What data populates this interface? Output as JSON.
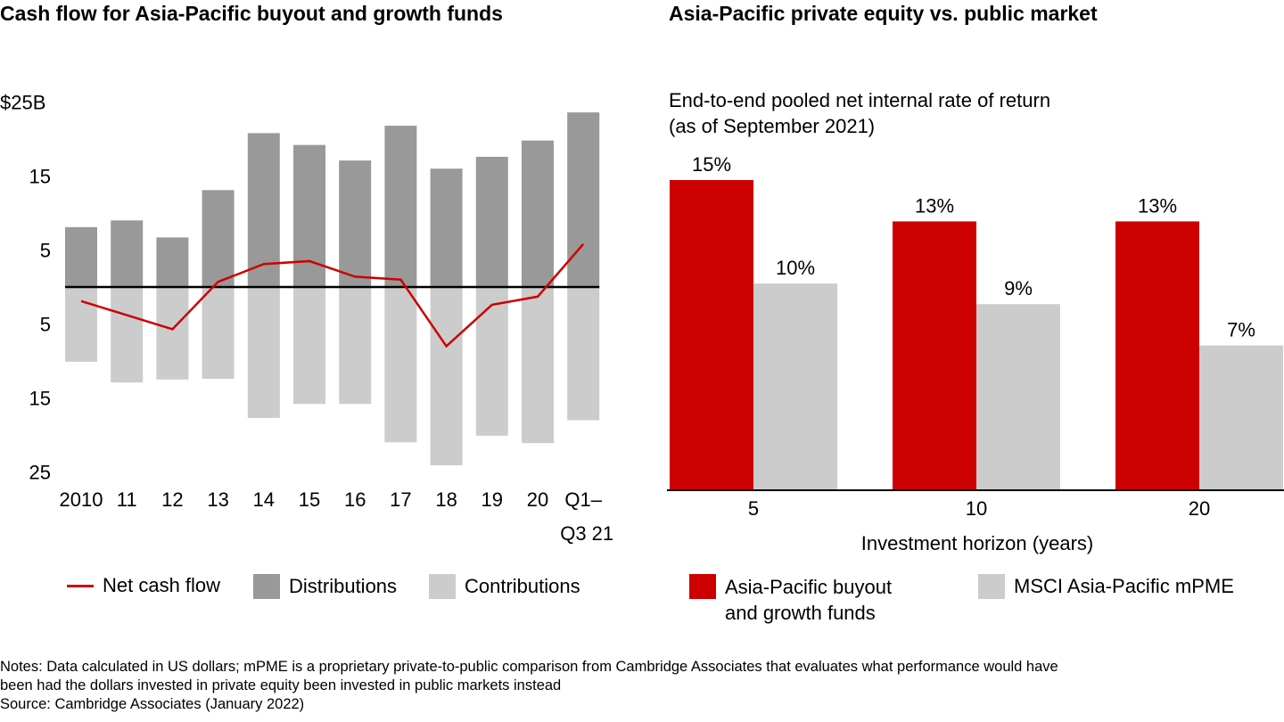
{
  "chart_data": [
    {
      "type": "bar",
      "title": "Cash flow for Asia-Pacific buyout and growth funds",
      "categories": [
        "2010",
        "11",
        "12",
        "13",
        "14",
        "15",
        "16",
        "17",
        "18",
        "19",
        "20",
        "Q1–Q3 21"
      ],
      "category_lines": [
        [
          "2010"
        ],
        [
          "11"
        ],
        [
          "12"
        ],
        [
          "13"
        ],
        [
          "14"
        ],
        [
          "15"
        ],
        [
          "16"
        ],
        [
          "17"
        ],
        [
          "18"
        ],
        [
          "19"
        ],
        [
          "20"
        ],
        [
          "Q1–",
          "Q3 21"
        ]
      ],
      "y_ticks": [
        {
          "value": 25,
          "label": "$25B"
        },
        {
          "value": 15,
          "label": "15"
        },
        {
          "value": 5,
          "label": "5"
        },
        {
          "value": -5,
          "label": "5"
        },
        {
          "value": -15,
          "label": "15"
        },
        {
          "value": -25,
          "label": "25"
        }
      ],
      "ylim": [
        -25,
        25
      ],
      "series": [
        {
          "name": "Distributions",
          "type": "bar",
          "color": "#999999",
          "values": [
            8.1,
            9.0,
            6.7,
            13.1,
            20.8,
            19.2,
            17.1,
            21.8,
            16.0,
            17.6,
            19.8,
            23.6
          ]
        },
        {
          "name": "Contributions",
          "type": "bar",
          "color": "#cccccc",
          "values": [
            -10.1,
            -12.9,
            -12.5,
            -12.4,
            -17.7,
            -15.8,
            -15.8,
            -21.0,
            -24.1,
            -20.1,
            -21.1,
            -18.0
          ]
        },
        {
          "name": "Net cash flow",
          "type": "line",
          "color": "#cc0000",
          "values": [
            -1.9,
            -3.8,
            -5.7,
            0.7,
            3.1,
            3.5,
            1.4,
            1.0,
            -8.0,
            -2.4,
            -1.3,
            5.8
          ]
        }
      ],
      "legend": [
        "Net cash flow",
        "Distributions",
        "Contributions"
      ],
      "legend_placement": "bottom"
    },
    {
      "type": "bar",
      "title": "Asia-Pacific private equity vs. public market",
      "subtitle": [
        "End-to-end pooled net internal rate of return",
        "(as of September 2021)"
      ],
      "categories": [
        "5",
        "10",
        "20"
      ],
      "xlabel": "Investment horizon (years)",
      "series": [
        {
          "name": "Asia-Pacific buyout and growth funds",
          "color": "#cc0000",
          "values": [
            15,
            13,
            13
          ],
          "labels": [
            "15%",
            "13%",
            "13%"
          ]
        },
        {
          "name": "MSCI Asia-Pacific mPME",
          "color": "#cccccc",
          "values": [
            10,
            9,
            7
          ],
          "labels": [
            "10%",
            "9%",
            "7%"
          ]
        }
      ],
      "legend": [
        [
          "Asia-Pacific buyout",
          "and growth funds"
        ],
        [
          "MSCI Asia-Pacific mPME"
        ]
      ],
      "legend_placement": "bottom"
    }
  ],
  "notes": [
    "Notes: Data calculated in US dollars; mPME is a proprietary private-to-public comparison from Cambridge Associates that evaluates what performance would have",
    "been had the dollars invested in private equity been invested in public markets instead",
    "Source: Cambridge Associates (January 2022)"
  ]
}
